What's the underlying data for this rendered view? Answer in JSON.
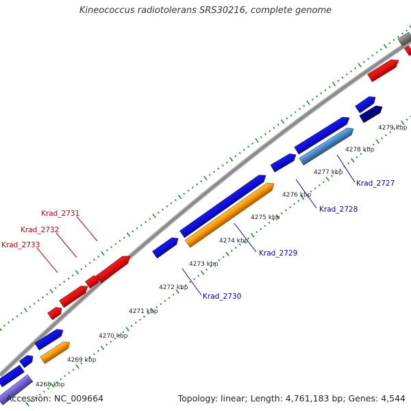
{
  "title": "Kineococcus radiotolerans SRS30216, complete genome",
  "accession": "Accession: NC_009664",
  "summary": "Topology: linear; Length: 4,761,183 bp; Genes: 4,544",
  "colors": {
    "backbone": "#8a8a8a",
    "tick": "#1e8a1e",
    "forward_label": "#cc0000",
    "reverse_label": "#0000cc",
    "leader_forward": "#cc0000",
    "leader_reverse": "#0000cc"
  },
  "scale_labels": [
    "4268 kbp",
    "4269 kbp",
    "4270 kbp",
    "4271 kbp",
    "4272 kbp",
    "4273 kbp",
    "4274 kbp",
    "4275 kbp",
    "4276 kbp",
    "4277 kbp",
    "4278 kbp",
    "4279 kbp"
  ],
  "forward_gene_labels": [
    "Krad_2731",
    "Krad_2732",
    "Krad_2733"
  ],
  "reverse_gene_labels": [
    "Krad_2727",
    "Krad_2728",
    "Krad_2729",
    "Krad_2730"
  ],
  "features": [
    {
      "name": "gray-gene-1",
      "color": "#7a7a7a",
      "strand": "plus"
    },
    {
      "name": "red-gene-1",
      "color": "#e81010",
      "strand": "plus"
    },
    {
      "name": "red-gene-2",
      "color": "#e81010",
      "strand": "plus"
    },
    {
      "name": "red-gene-3",
      "color": "#e81010",
      "strand": "plus"
    },
    {
      "name": "red-gene-4",
      "color": "#e81010",
      "strand": "plus"
    },
    {
      "name": "red-gene-5",
      "color": "#e81010",
      "strand": "plus"
    },
    {
      "name": "blue-gene-1",
      "color": "#1010e0",
      "strand": "minus"
    },
    {
      "name": "blue-gene-2",
      "color": "#1010e0",
      "strand": "minus"
    },
    {
      "name": "blue-gene-3",
      "color": "#1010e0",
      "strand": "minus"
    },
    {
      "name": "blue-gene-4",
      "color": "#1010e0",
      "strand": "minus"
    },
    {
      "name": "blue-gene-5",
      "color": "#1010e0",
      "strand": "minus"
    },
    {
      "name": "blue-gene-6",
      "color": "#1010e0",
      "strand": "minus"
    },
    {
      "name": "blue-gene-7",
      "color": "#1010e0",
      "strand": "minus"
    },
    {
      "name": "blue-gene-8",
      "color": "#1010e0",
      "strand": "minus"
    },
    {
      "name": "navy-gene-1",
      "color": "#000080",
      "strand": "minus"
    },
    {
      "name": "steelblue-gene-1",
      "color": "#4a86c0",
      "strand": "minus"
    },
    {
      "name": "orange-gene-1",
      "color": "#ff9410",
      "strand": "minus"
    },
    {
      "name": "orange-gene-2",
      "color": "#ff9410",
      "strand": "minus"
    },
    {
      "name": "purple-gene-1",
      "color": "#7060d0",
      "strand": "minus"
    }
  ]
}
